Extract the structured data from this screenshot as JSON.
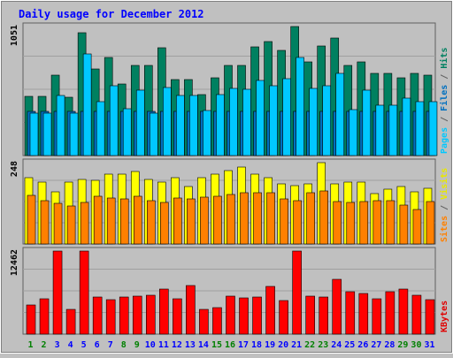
{
  "chart_data": {
    "type": "bar",
    "title": "Daily usage for December 2012",
    "categories": [
      "1",
      "2",
      "3",
      "4",
      "5",
      "6",
      "7",
      "8",
      "9",
      "10",
      "11",
      "12",
      "13",
      "14",
      "15",
      "16",
      "17",
      "18",
      "19",
      "20",
      "21",
      "22",
      "23",
      "24",
      "25",
      "26",
      "27",
      "28",
      "29",
      "30",
      "31"
    ],
    "weekend_days": [
      "1",
      "2",
      "8",
      "9",
      "15",
      "16",
      "22",
      "23",
      "29",
      "30"
    ],
    "panels": [
      {
        "id": "hits",
        "ymax_label": "1051",
        "ymax": 1051,
        "ylabel_parts": [
          {
            "text": "Pages",
            "color": "#00c8ff"
          },
          {
            "text": " / ",
            "color": "#606060"
          },
          {
            "text": "Files",
            "color": "#0070c0"
          },
          {
            "text": " / ",
            "color": "#606060"
          },
          {
            "text": "Hits",
            "color": "#008060"
          }
        ],
        "series": [
          {
            "name": "Hits",
            "color": "#008060",
            "values": [
              485,
              485,
              652,
              476,
              1000,
              706,
              797,
              582,
              737,
              737,
              879,
              616,
              616,
              495,
              630,
              737,
              737,
              888,
              928,
              856,
              1051,
              760,
              894,
              955,
              737,
              760,
              673,
              667,
              637,
              673,
              658
            ]
          },
          {
            "name": "Files",
            "color": "#0070c0",
            "values": [
              363,
              363,
              363,
              363,
              363,
              363,
              363,
              363,
              363,
              363,
              363,
              363,
              363,
              363,
              363,
              363,
              363,
              363,
              363,
              363,
              363,
              363,
              363,
              363,
              363,
              363,
              363,
              363,
              363,
              363,
              363
            ]
          },
          {
            "name": "Pages",
            "color": "#00c8ff",
            "values": [
              343,
              343,
              490,
              343,
              826,
              440,
              567,
              379,
              530,
              343,
              551,
              490,
              490,
              368,
              500,
              546,
              543,
              612,
              572,
              624,
              798,
              546,
              568,
              673,
              373,
              530,
              411,
              411,
              470,
              439,
              439
            ]
          }
        ]
      },
      {
        "id": "visits",
        "ymax_label": "248",
        "ymax": 248,
        "ylabel_parts": [
          {
            "text": "Sites",
            "color": "#ff8000"
          },
          {
            "text": " / ",
            "color": "#606060"
          },
          {
            "text": "Visits",
            "color": "#e8e800"
          }
        ],
        "series": [
          {
            "name": "Visits",
            "color": "#ffff00",
            "values": [
              203,
              190,
              160,
              190,
              198,
              193,
              212,
              212,
              220,
              198,
              190,
              203,
              174,
              203,
              212,
              225,
              234,
              212,
              203,
              182,
              178,
              182,
              248,
              182,
              190,
              190,
              153,
              168,
              174,
              160,
              171
            ]
          },
          {
            "name": "Sites",
            "color": "#ff8000",
            "values": [
              148,
              133,
              123,
              117,
              126,
              145,
              140,
              137,
              145,
              132,
              126,
              140,
              137,
              144,
              145,
              150,
              157,
              157,
              157,
              138,
              131,
              155,
              162,
              129,
              128,
              129,
              131,
              131,
              119,
              105,
              129
            ]
          }
        ]
      },
      {
        "id": "kbytes",
        "ymax_label": "12462",
        "ymax": 12462,
        "ylabel_parts": [
          {
            "text": "KBytes",
            "color": "#e00000"
          }
        ],
        "series": [
          {
            "name": "KBytes",
            "color": "#ff0000",
            "values": [
              4375,
              5269,
              12462,
              3669,
              12462,
              5626,
              5177,
              5626,
              5716,
              5805,
              6700,
              5357,
              7327,
              3757,
              3935,
              5716,
              5444,
              5626,
              7149,
              5090,
              12462,
              5716,
              5626,
              8223,
              6345,
              6062,
              5357,
              6345,
              6793,
              5805,
              5177
            ]
          }
        ]
      }
    ],
    "colors": {
      "background": "#c0c0c0",
      "plot_background": "#c0c0c0",
      "title": "#0000ff",
      "weekday_label": "#0000ff",
      "weekend_label": "#008000",
      "grid": "#a0a0a0"
    }
  }
}
